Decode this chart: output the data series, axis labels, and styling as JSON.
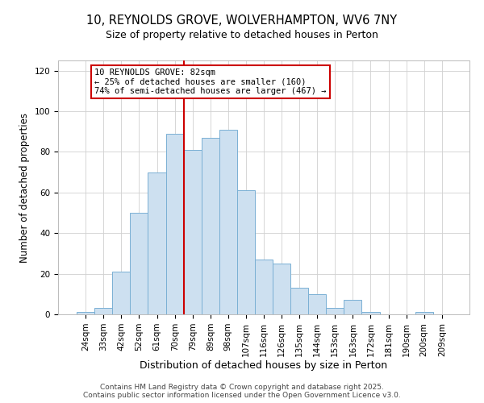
{
  "title": "10, REYNOLDS GROVE, WOLVERHAMPTON, WV6 7NY",
  "subtitle": "Size of property relative to detached houses in Perton",
  "xlabel": "Distribution of detached houses by size in Perton",
  "ylabel": "Number of detached properties",
  "bar_labels": [
    "24sqm",
    "33sqm",
    "42sqm",
    "52sqm",
    "61sqm",
    "70sqm",
    "79sqm",
    "89sqm",
    "98sqm",
    "107sqm",
    "116sqm",
    "126sqm",
    "135sqm",
    "144sqm",
    "153sqm",
    "163sqm",
    "172sqm",
    "181sqm",
    "190sqm",
    "200sqm",
    "209sqm"
  ],
  "bar_values": [
    1,
    3,
    21,
    50,
    70,
    89,
    81,
    87,
    91,
    61,
    27,
    25,
    13,
    10,
    3,
    7,
    1,
    0,
    0,
    1,
    0
  ],
  "bar_color": "#cde0f0",
  "bar_edge_color": "#7ab0d4",
  "ylim": [
    0,
    125
  ],
  "yticks": [
    0,
    20,
    40,
    60,
    80,
    100,
    120
  ],
  "vline_x_index": 6,
  "vline_color": "#cc0000",
  "annotation_title": "10 REYNOLDS GROVE: 82sqm",
  "annotation_line1": "← 25% of detached houses are smaller (160)",
  "annotation_line2": "74% of semi-detached houses are larger (467) →",
  "footer1": "Contains HM Land Registry data © Crown copyright and database right 2025.",
  "footer2": "Contains public sector information licensed under the Open Government Licence v3.0.",
  "background_color": "#ffffff",
  "grid_color": "#d0d0d0",
  "title_fontsize": 10.5,
  "subtitle_fontsize": 9,
  "xlabel_fontsize": 9,
  "ylabel_fontsize": 8.5,
  "tick_fontsize": 7.5,
  "annotation_fontsize": 7.5,
  "footer_fontsize": 6.5
}
